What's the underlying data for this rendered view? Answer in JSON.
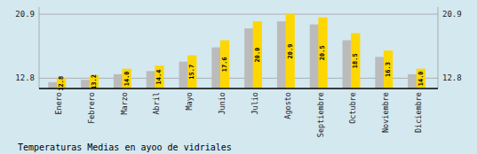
{
  "chart_data": {
    "type": "bar",
    "title": "Temperaturas Medias en ayoo de vidriales",
    "categories": [
      "Enero",
      "Febrero",
      "Marzo",
      "Abril",
      "Mayo",
      "Junio",
      "Julio",
      "Agosto",
      "Septiembre",
      "Octubre",
      "Noviembre",
      "Diciembre"
    ],
    "series": [
      {
        "color": "#BBBBBB",
        "values": [
          12.3,
          12.6,
          13.3,
          13.7,
          14.9,
          16.7,
          19.1,
          20.0,
          19.6,
          17.6,
          15.5,
          13.3
        ]
      },
      {
        "color": "#FFD700",
        "values": [
          12.8,
          13.2,
          14.0,
          14.4,
          15.7,
          17.6,
          20.0,
          20.9,
          20.5,
          18.5,
          16.3,
          14.0
        ],
        "value_labels": [
          "12.8",
          "13.2",
          "14.0",
          "14.4",
          "15.7",
          "17.6",
          "20.0",
          "20.9",
          "20.5",
          "18.5",
          "16.3",
          "14.0"
        ],
        "data_labels": true
      }
    ],
    "ylim": [
      11.5,
      21.8
    ],
    "yticks": [
      12.8,
      20.9
    ],
    "grid": true
  }
}
